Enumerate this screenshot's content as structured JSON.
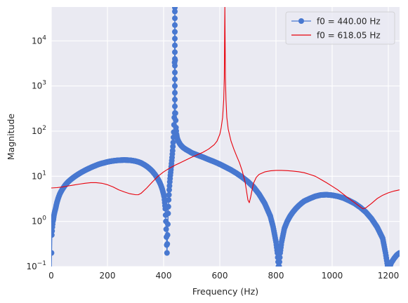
{
  "chart_data": {
    "type": "line",
    "title": "",
    "xlabel": "Frequency (Hz)",
    "ylabel": "Magnitude",
    "xlim": [
      0,
      1240
    ],
    "ylim_log10": [
      -1,
      4.75
    ],
    "yscale": "log",
    "grid": true,
    "legend_position": "top-right",
    "x_ticks": [
      0,
      200,
      400,
      600,
      800,
      1000,
      1200
    ],
    "x_tick_labels": [
      "0",
      "200",
      "400",
      "600",
      "800",
      "1000",
      "1200"
    ],
    "y_ticks_log10": [
      -1,
      0,
      1,
      2,
      3,
      4
    ],
    "y_tick_labels": [
      {
        "base": "10",
        "exp": "−1"
      },
      {
        "base": "10",
        "exp": "0"
      },
      {
        "base": "10",
        "exp": "1"
      },
      {
        "base": "10",
        "exp": "2"
      },
      {
        "base": "10",
        "exp": "3"
      },
      {
        "base": "10",
        "exp": "4"
      }
    ],
    "series": [
      {
        "name": "f0 = 440.00 Hz",
        "color": "#4878d0",
        "style": "line-with-circle-markers",
        "x": [
          0,
          2,
          4,
          6,
          8,
          10,
          12,
          14,
          16,
          18,
          20,
          25,
          30,
          35,
          40,
          45,
          50,
          60,
          70,
          80,
          90,
          100,
          110,
          120,
          130,
          140,
          150,
          160,
          170,
          180,
          190,
          200,
          210,
          220,
          230,
          240,
          250,
          260,
          270,
          280,
          290,
          300,
          310,
          320,
          330,
          340,
          350,
          360,
          370,
          380,
          385,
          390,
          395,
          400,
          402,
          404,
          406,
          408,
          410,
          412,
          414,
          416,
          418,
          420,
          422,
          424,
          426,
          428,
          430,
          432,
          434,
          436,
          438,
          440,
          442,
          444,
          446,
          448,
          450,
          455,
          460,
          465,
          470,
          480,
          490,
          500,
          520,
          540,
          560,
          580,
          600,
          620,
          640,
          660,
          680,
          700,
          720,
          740,
          760,
          780,
          790,
          800,
          805,
          810,
          815,
          820,
          830,
          840,
          850,
          860,
          870,
          880,
          890,
          900,
          920,
          940,
          960,
          980,
          1000,
          1020,
          1040,
          1060,
          1080,
          1100,
          1120,
          1140,
          1160,
          1180,
          1190,
          1200,
          1210,
          1220,
          1230,
          1240
        ],
        "y": [
          0.08,
          0.5,
          0.75,
          1.0,
          1.15,
          1.4,
          1.6,
          1.8,
          2.0,
          2.3,
          2.6,
          3.3,
          4.0,
          4.6,
          5.2,
          5.8,
          6.4,
          7.5,
          8.5,
          9.5,
          10.5,
          11.5,
          12.5,
          13.5,
          14.5,
          15.5,
          16.5,
          17.5,
          18.5,
          19.3,
          20.0,
          20.8,
          21.4,
          21.9,
          22.3,
          22.6,
          22.8,
          22.9,
          22.8,
          22.6,
          22.2,
          21.6,
          20.8,
          19.7,
          18.2,
          16.6,
          14.8,
          12.9,
          10.8,
          8.6,
          7.5,
          6.4,
          5.2,
          4.0,
          3.5,
          2.6,
          1.9,
          1.0,
          0.45,
          0.2,
          0.5,
          1.5,
          3.0,
          5.0,
          7.5,
          10.5,
          14.0,
          19.0,
          26.0,
          37.0,
          56.0,
          95.0,
          200.0,
          55000.0,
          250.0,
          120.0,
          85.0,
          72.0,
          65.0,
          56.0,
          50.0,
          46.0,
          43.0,
          39.0,
          36.0,
          33.0,
          29.5,
          26.5,
          23.5,
          21.0,
          18.5,
          16.0,
          13.8,
          11.6,
          9.5,
          7.6,
          5.8,
          4.0,
          2.5,
          1.3,
          0.75,
          0.35,
          0.2,
          0.08,
          0.2,
          0.35,
          0.7,
          1.0,
          1.3,
          1.6,
          1.9,
          2.2,
          2.5,
          2.8,
          3.2,
          3.6,
          3.85,
          3.9,
          3.8,
          3.6,
          3.3,
          2.9,
          2.5,
          2.05,
          1.6,
          1.15,
          0.75,
          0.42,
          0.2,
          0.08,
          0.12,
          0.15,
          0.18,
          0.2
        ]
      },
      {
        "name": "f0 = 618.05 Hz",
        "color": "#e8000b",
        "style": "line",
        "x": [
          0,
          20,
          40,
          60,
          80,
          100,
          120,
          140,
          160,
          180,
          200,
          220,
          240,
          260,
          280,
          300,
          310,
          320,
          340,
          360,
          380,
          400,
          420,
          440,
          460,
          480,
          500,
          520,
          540,
          560,
          580,
          590,
          600,
          605,
          610,
          614,
          616,
          618,
          620,
          622,
          625,
          630,
          640,
          650,
          660,
          670,
          680,
          690,
          700,
          705,
          710,
          715,
          720,
          730,
          740,
          760,
          780,
          800,
          820,
          840,
          860,
          880,
          900,
          920,
          940,
          960,
          980,
          1000,
          1020,
          1040,
          1060,
          1080,
          1100,
          1110,
          1120,
          1140,
          1160,
          1180,
          1200,
          1220,
          1240
        ],
        "y": [
          5.5,
          5.6,
          5.8,
          6.1,
          6.4,
          6.7,
          7.0,
          7.2,
          7.2,
          7.0,
          6.5,
          5.8,
          5.0,
          4.5,
          4.1,
          3.9,
          3.9,
          4.2,
          5.5,
          7.5,
          10.0,
          12.5,
          15.0,
          17.5,
          20.0,
          23.0,
          26.5,
          30.0,
          34.0,
          40.0,
          50.0,
          60.0,
          85.0,
          120.0,
          200.0,
          500.0,
          1500.0,
          60000.0,
          1500.0,
          500.0,
          200.0,
          110.0,
          60.0,
          40.0,
          28.0,
          20.0,
          13.0,
          7.5,
          3.0,
          2.6,
          3.5,
          5.0,
          7.0,
          9.5,
          11.0,
          12.5,
          13.2,
          13.5,
          13.5,
          13.3,
          13.0,
          12.6,
          12.0,
          11.0,
          10.0,
          8.5,
          7.2,
          6.0,
          5.0,
          4.0,
          3.2,
          2.6,
          2.1,
          1.9,
          2.0,
          2.5,
          3.2,
          3.8,
          4.3,
          4.7,
          5.0
        ]
      }
    ]
  }
}
